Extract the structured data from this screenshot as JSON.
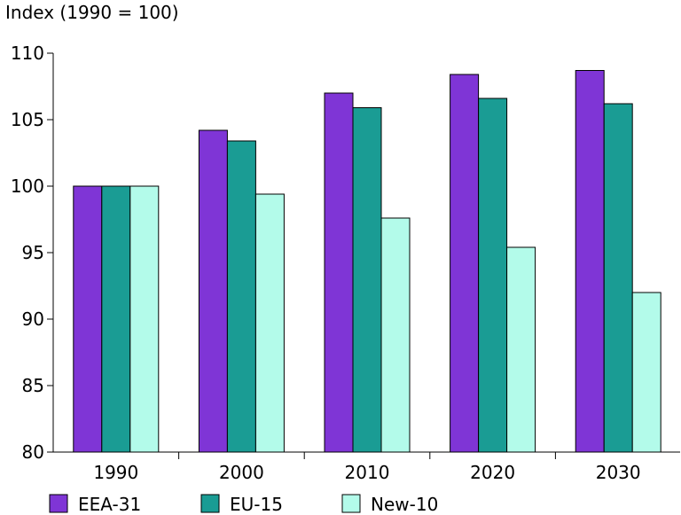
{
  "chart_data": {
    "type": "bar",
    "ylabel": "Index (1990 = 100)",
    "categories": [
      "1990",
      "2000",
      "2010",
      "2020",
      "2030"
    ],
    "series": [
      {
        "name": "EEA-31",
        "color": "#7f35d6",
        "values": [
          100,
          104.2,
          107.0,
          108.4,
          108.7
        ]
      },
      {
        "name": "EU-15",
        "color": "#1a9c94",
        "values": [
          100,
          103.4,
          105.9,
          106.6,
          106.2
        ]
      },
      {
        "name": "New-10",
        "color": "#b3fbea",
        "values": [
          100,
          99.4,
          97.6,
          95.4,
          92.0
        ]
      }
    ],
    "ylim": [
      80,
      110
    ],
    "yticks": [
      80,
      85,
      90,
      95,
      100,
      105,
      110
    ],
    "grid": false,
    "legend_position": "bottom"
  }
}
